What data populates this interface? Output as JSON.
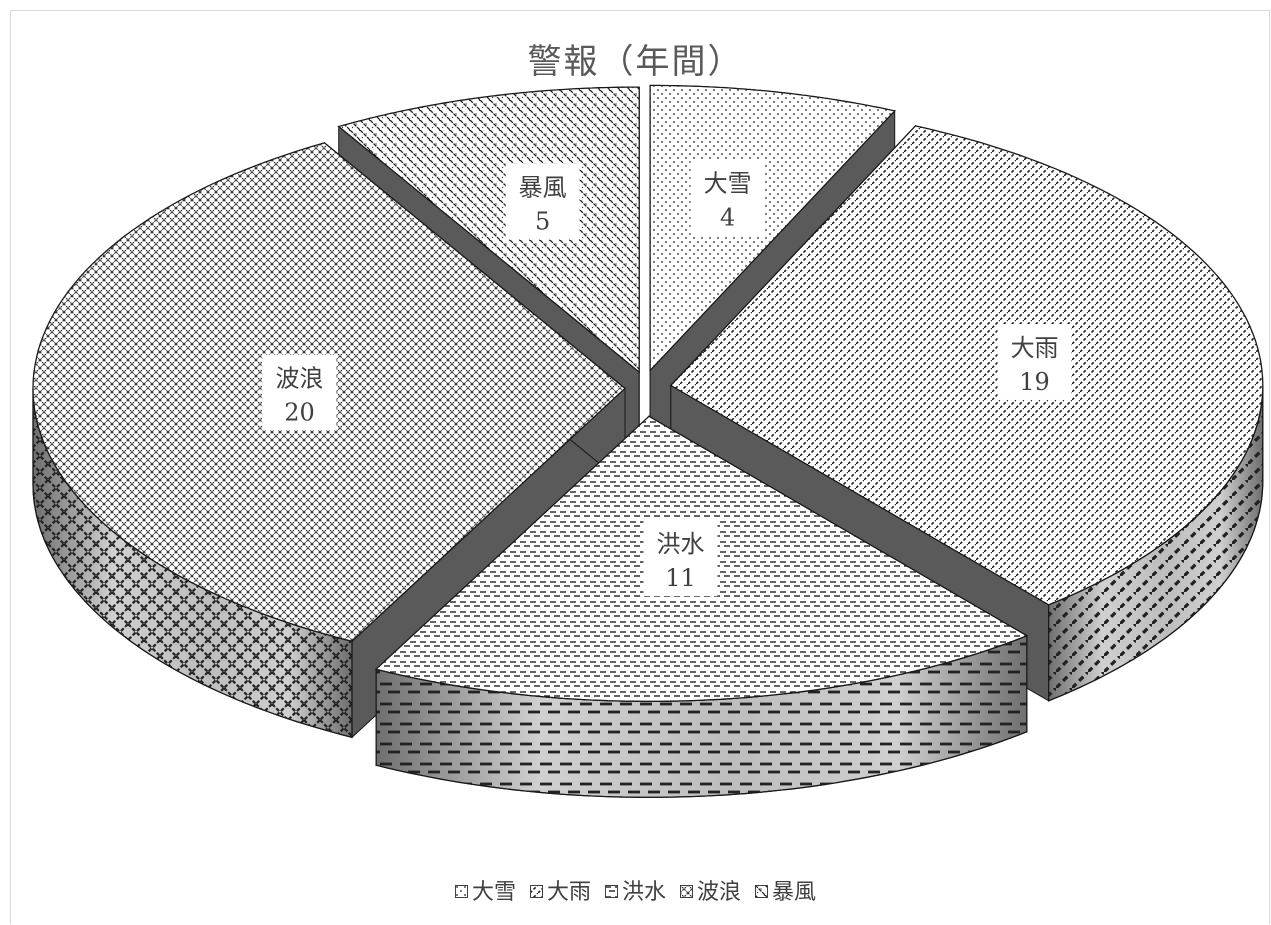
{
  "chart_data": {
    "type": "pie",
    "title": "警報（年間）",
    "categories": [
      "大雪",
      "大雨",
      "洪水",
      "波浪",
      "暴風"
    ],
    "values": [
      4,
      19,
      11,
      20,
      5
    ],
    "legend": "bottom",
    "style": "3d-exploded",
    "patterns": [
      "dots",
      "diagonal-dashes",
      "horizontal-dashes",
      "crosshatch",
      "diagonal-weave"
    ]
  },
  "colors": {
    "title": "#595959",
    "text": "#404040",
    "edge": "#1a1a1a",
    "pattern": "#222222",
    "side_light": "#d0d0d0",
    "side_dark": "#6f6f6f"
  }
}
